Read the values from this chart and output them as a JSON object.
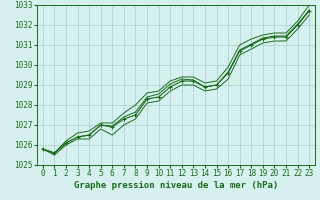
{
  "x": [
    0,
    1,
    2,
    3,
    4,
    5,
    6,
    7,
    8,
    9,
    10,
    11,
    12,
    13,
    14,
    15,
    16,
    17,
    18,
    19,
    20,
    21,
    22,
    23
  ],
  "line_main": [
    1025.8,
    1025.6,
    1026.1,
    1026.4,
    1026.5,
    1027.0,
    1026.9,
    1027.3,
    1027.5,
    1028.3,
    1028.4,
    1028.9,
    1029.2,
    1029.2,
    1028.9,
    1029.0,
    1029.6,
    1030.7,
    1031.0,
    1031.3,
    1031.4,
    1031.4,
    1032.0,
    1032.7
  ],
  "line_upper": [
    1025.8,
    1025.6,
    1026.2,
    1026.6,
    1026.7,
    1027.1,
    1027.1,
    1027.6,
    1028.0,
    1028.6,
    1028.7,
    1029.2,
    1029.4,
    1029.4,
    1029.1,
    1029.2,
    1029.9,
    1031.0,
    1031.3,
    1031.5,
    1031.6,
    1031.6,
    1032.2,
    1033.0
  ],
  "line_lower": [
    1025.8,
    1025.5,
    1026.0,
    1026.3,
    1026.3,
    1026.8,
    1026.5,
    1027.0,
    1027.3,
    1028.1,
    1028.2,
    1028.7,
    1029.0,
    1029.0,
    1028.7,
    1028.8,
    1029.3,
    1030.5,
    1030.8,
    1031.1,
    1031.2,
    1031.2,
    1031.8,
    1032.5
  ],
  "line_smooth": [
    1025.8,
    1025.6,
    1026.1,
    1026.4,
    1026.5,
    1027.0,
    1026.95,
    1027.4,
    1027.65,
    1028.4,
    1028.55,
    1029.05,
    1029.3,
    1029.25,
    1028.9,
    1029.0,
    1029.65,
    1030.75,
    1031.05,
    1031.35,
    1031.45,
    1031.45,
    1032.05,
    1032.75
  ],
  "ylim": [
    1025.0,
    1033.0
  ],
  "xlim": [
    -0.5,
    23.5
  ],
  "yticks": [
    1025,
    1026,
    1027,
    1028,
    1029,
    1030,
    1031,
    1032,
    1033
  ],
  "xticks": [
    0,
    1,
    2,
    3,
    4,
    5,
    6,
    7,
    8,
    9,
    10,
    11,
    12,
    13,
    14,
    15,
    16,
    17,
    18,
    19,
    20,
    21,
    22,
    23
  ],
  "xlabel": "Graphe pression niveau de la mer (hPa)",
  "line_color": "#1a6b1a",
  "bg_color": "#d6f0f0",
  "grid_color": "#a8cece",
  "font_color": "#1a6b1a",
  "tick_fontsize": 5.5,
  "xlabel_fontsize": 6.5
}
